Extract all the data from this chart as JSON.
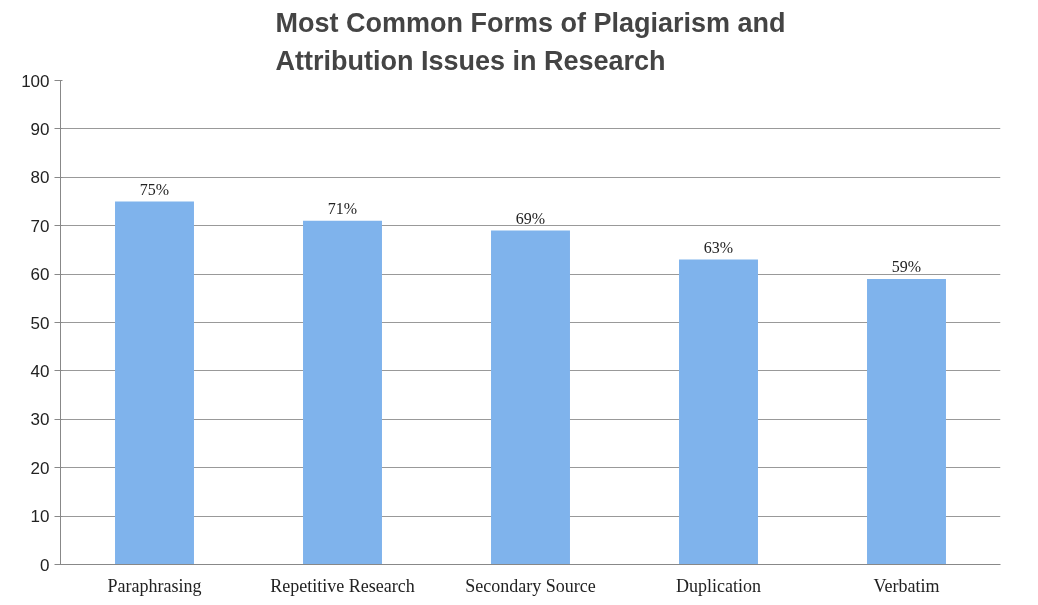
{
  "chart_data": {
    "type": "bar",
    "title": "Most Common Forms of Plagiarism and Attribution Issues in Research",
    "categories": [
      "Paraphrasing",
      "Repetitive Research",
      "Secondary Source",
      "Duplication",
      "Verbatim"
    ],
    "values": [
      75,
      71,
      69,
      63,
      59
    ],
    "value_labels": [
      "75%",
      "71%",
      "69%",
      "63%",
      "59%"
    ],
    "color": "#7fb3ec",
    "ylim": [
      0,
      100
    ],
    "yticks": [
      0,
      10,
      20,
      30,
      40,
      50,
      60,
      70,
      80,
      90,
      100
    ],
    "grid": "y"
  }
}
